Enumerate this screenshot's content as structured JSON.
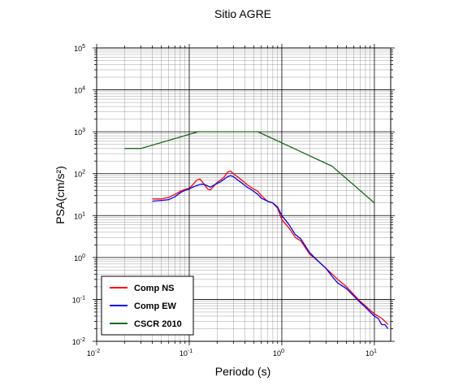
{
  "chart_data": {
    "type": "line",
    "title": "Sitio AGRE",
    "xlabel": "Periodo (s)",
    "ylabel": "PSA(cm/s²)",
    "x_scale": "log",
    "y_scale": "log",
    "xlim": [
      0.01,
      15
    ],
    "ylim": [
      0.01,
      100000
    ],
    "grid": true,
    "legend_position": "bottom-left",
    "x_ticks": [
      {
        "base": "10",
        "exp": "-2",
        "value": 0.01
      },
      {
        "base": "10",
        "exp": "-1",
        "value": 0.1
      },
      {
        "base": "10",
        "exp": "0",
        "value": 1
      },
      {
        "base": "10",
        "exp": "1",
        "value": 10
      }
    ],
    "y_ticks": [
      {
        "base": "10",
        "exp": "-2",
        "value": 0.01
      },
      {
        "base": "10",
        "exp": "-1",
        "value": 0.1
      },
      {
        "base": "10",
        "exp": "0",
        "value": 1
      },
      {
        "base": "10",
        "exp": "1",
        "value": 10
      },
      {
        "base": "10",
        "exp": "2",
        "value": 100
      },
      {
        "base": "10",
        "exp": "3",
        "value": 1000
      },
      {
        "base": "10",
        "exp": "4",
        "value": 10000
      },
      {
        "base": "10",
        "exp": "5",
        "value": 100000
      }
    ],
    "series": [
      {
        "name": "Comp NS",
        "color": "#ff0000",
        "points": [
          [
            0.04,
            25
          ],
          [
            0.05,
            25
          ],
          [
            0.06,
            27
          ],
          [
            0.07,
            32
          ],
          [
            0.08,
            38
          ],
          [
            0.09,
            42
          ],
          [
            0.1,
            45
          ],
          [
            0.11,
            55
          ],
          [
            0.12,
            70
          ],
          [
            0.13,
            75
          ],
          [
            0.14,
            62
          ],
          [
            0.15,
            50
          ],
          [
            0.16,
            42
          ],
          [
            0.17,
            41
          ],
          [
            0.18,
            48
          ],
          [
            0.2,
            62
          ],
          [
            0.22,
            72
          ],
          [
            0.24,
            85
          ],
          [
            0.26,
            110
          ],
          [
            0.28,
            115
          ],
          [
            0.3,
            100
          ],
          [
            0.33,
            85
          ],
          [
            0.37,
            70
          ],
          [
            0.42,
            55
          ],
          [
            0.48,
            45
          ],
          [
            0.55,
            38
          ],
          [
            0.6,
            30
          ],
          [
            0.7,
            22
          ],
          [
            0.8,
            20
          ],
          [
            0.9,
            15
          ],
          [
            1.0,
            8
          ],
          [
            1.2,
            5
          ],
          [
            1.4,
            3
          ],
          [
            1.6,
            2.5
          ],
          [
            2.0,
            1.2
          ],
          [
            2.5,
            0.8
          ],
          [
            3.0,
            0.55
          ],
          [
            3.5,
            0.4
          ],
          [
            4.0,
            0.3
          ],
          [
            5.0,
            0.2
          ],
          [
            6.0,
            0.13
          ],
          [
            7.0,
            0.09
          ],
          [
            8.0,
            0.07
          ],
          [
            9.0,
            0.055
          ],
          [
            10.0,
            0.045
          ],
          [
            11.0,
            0.04
          ],
          [
            12.0,
            0.035
          ],
          [
            13.0,
            0.03
          ],
          [
            14.0,
            0.025
          ]
        ]
      },
      {
        "name": "Comp EW",
        "color": "#0000ff",
        "points": [
          [
            0.04,
            22
          ],
          [
            0.05,
            23
          ],
          [
            0.06,
            24
          ],
          [
            0.07,
            28
          ],
          [
            0.08,
            35
          ],
          [
            0.09,
            40
          ],
          [
            0.1,
            43
          ],
          [
            0.11,
            48
          ],
          [
            0.12,
            52
          ],
          [
            0.13,
            55
          ],
          [
            0.14,
            56
          ],
          [
            0.15,
            54
          ],
          [
            0.16,
            50
          ],
          [
            0.17,
            48
          ],
          [
            0.18,
            52
          ],
          [
            0.2,
            58
          ],
          [
            0.22,
            65
          ],
          [
            0.24,
            75
          ],
          [
            0.26,
            85
          ],
          [
            0.28,
            90
          ],
          [
            0.3,
            85
          ],
          [
            0.33,
            72
          ],
          [
            0.37,
            60
          ],
          [
            0.42,
            48
          ],
          [
            0.48,
            40
          ],
          [
            0.55,
            32
          ],
          [
            0.6,
            26
          ],
          [
            0.7,
            22
          ],
          [
            0.8,
            20
          ],
          [
            0.9,
            16
          ],
          [
            1.0,
            10
          ],
          [
            1.2,
            6
          ],
          [
            1.4,
            3.5
          ],
          [
            1.6,
            2.8
          ],
          [
            2.0,
            1.3
          ],
          [
            2.5,
            0.8
          ],
          [
            3.0,
            0.55
          ],
          [
            3.5,
            0.35
          ],
          [
            4.0,
            0.25
          ],
          [
            5.0,
            0.18
          ],
          [
            6.0,
            0.12
          ],
          [
            7.0,
            0.085
          ],
          [
            8.0,
            0.065
          ],
          [
            9.0,
            0.05
          ],
          [
            10.0,
            0.04
          ],
          [
            11.0,
            0.035
          ],
          [
            12.0,
            0.025
          ],
          [
            13.0,
            0.025
          ],
          [
            14.0,
            0.02
          ]
        ]
      },
      {
        "name": "CSCR 2010",
        "color": "#1a6b1a",
        "points": [
          [
            0.02,
            400
          ],
          [
            0.03,
            400
          ],
          [
            0.125,
            1000
          ],
          [
            0.55,
            1000
          ],
          [
            3.5,
            150
          ],
          [
            10.0,
            20
          ]
        ]
      }
    ]
  }
}
